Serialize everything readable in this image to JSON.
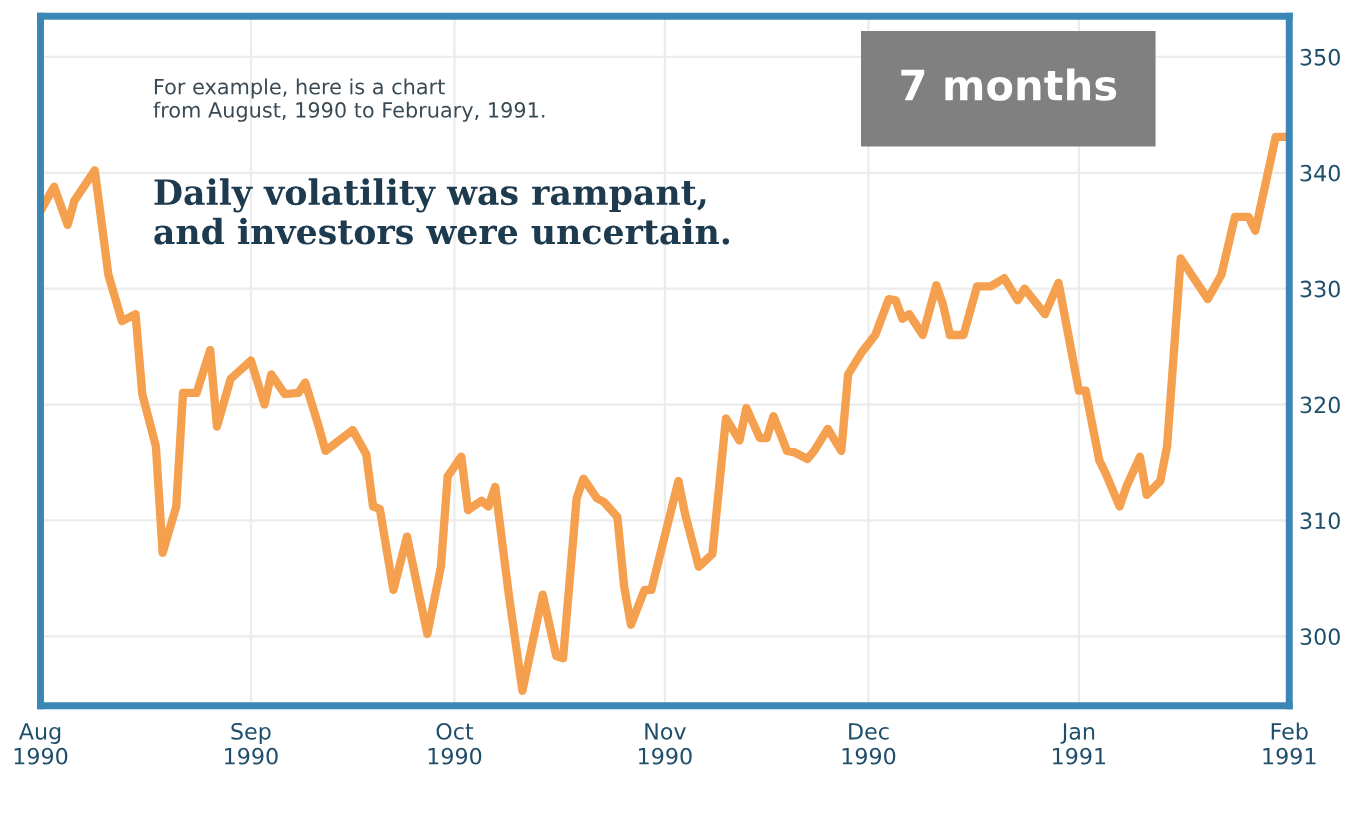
{
  "chart_data": {
    "type": "line",
    "annotations": [
      "For example, here is a chart\nfrom August, 1990 to February, 1991.",
      "Daily volatility was rampant,\nand investors were uncertain.",
      "7 months"
    ],
    "x": [
      "1990-08-01",
      "1990-08-03",
      "1990-08-05",
      "1990-08-06",
      "1990-08-09",
      "1990-08-11",
      "1990-08-13",
      "1990-08-15",
      "1990-08-16",
      "1990-08-18",
      "1990-08-19",
      "1990-08-21",
      "1990-08-22",
      "1990-08-24",
      "1990-08-26",
      "1990-08-27",
      "1990-08-29",
      "1990-09-01",
      "1990-09-03",
      "1990-09-04",
      "1990-09-06",
      "1990-09-08",
      "1990-09-09",
      "1990-09-11",
      "1990-09-12",
      "1990-09-16",
      "1990-09-18",
      "1990-09-19",
      "1990-09-20",
      "1990-09-22",
      "1990-09-24",
      "1990-09-27",
      "1990-09-29",
      "1990-09-30",
      "1990-10-02",
      "1990-10-03",
      "1990-10-05",
      "1990-10-06",
      "1990-10-07",
      "1990-10-09",
      "1990-10-11",
      "1990-10-14",
      "1990-10-16",
      "1990-10-17",
      "1990-10-19",
      "1990-10-20",
      "1990-10-22",
      "1990-10-23",
      "1990-10-25",
      "1990-10-26",
      "1990-10-27",
      "1990-10-29",
      "1990-10-30",
      "1990-11-03",
      "1990-11-04",
      "1990-11-06",
      "1990-11-08",
      "1990-11-10",
      "1990-11-12",
      "1990-11-13",
      "1990-11-15",
      "1990-11-16",
      "1990-11-17",
      "1990-11-19",
      "1990-11-20",
      "1990-11-22",
      "1990-11-23",
      "1990-11-25",
      "1990-11-27",
      "1990-11-28",
      "1990-11-30",
      "1990-12-02",
      "1990-12-04",
      "1990-12-05",
      "1990-12-06",
      "1990-12-07",
      "1990-12-09",
      "1990-12-11",
      "1990-12-12",
      "1990-12-13",
      "1990-12-15",
      "1990-12-17",
      "1990-12-19",
      "1990-12-21",
      "1990-12-23",
      "1990-12-24",
      "1990-12-27",
      "1990-12-29",
      "1991-01-01",
      "1991-01-02",
      "1991-01-04",
      "1991-01-05",
      "1991-01-07",
      "1991-01-08",
      "1991-01-10",
      "1991-01-11",
      "1991-01-13",
      "1991-01-14",
      "1991-01-16",
      "1991-01-20",
      "1991-01-22",
      "1991-01-24",
      "1991-01-26",
      "1991-01-27",
      "1991-01-30",
      "1991-01-31"
    ],
    "series": [
      {
        "color": "#f5a04f",
        "values": [
          336.7,
          338.8,
          335.5,
          337.6,
          340.2,
          331.2,
          327.2,
          327.8,
          320.9,
          316.4,
          307.2,
          311.2,
          321.0,
          321.0,
          324.7,
          318.1,
          322.2,
          323.8,
          320.0,
          322.6,
          320.9,
          321.0,
          321.9,
          318.1,
          316.0,
          317.8,
          315.7,
          311.2,
          311.0,
          304.0,
          308.6,
          300.2,
          306.0,
          313.8,
          315.5,
          310.9,
          311.7,
          311.2,
          312.9,
          303.6,
          295.3,
          303.6,
          298.3,
          298.1,
          311.9,
          313.6,
          311.9,
          311.6,
          310.3,
          304.3,
          301.0,
          304.0,
          304.0,
          313.4,
          310.5,
          306.0,
          307.1,
          318.8,
          316.9,
          319.7,
          317.1,
          317.1,
          319.0,
          316.0,
          315.9,
          315.3,
          316.0,
          317.9,
          316.0,
          322.6,
          324.5,
          326.0,
          329.1,
          329.0,
          327.4,
          327.8,
          326.0,
          330.3,
          328.6,
          326.0,
          326.0,
          330.2,
          330.2,
          330.9,
          329.0,
          330.0,
          327.8,
          330.5,
          321.2,
          321.2,
          315.2,
          314.0,
          311.2,
          312.9,
          315.5,
          312.2,
          313.4,
          316.4,
          332.6,
          329.1,
          331.2,
          336.2,
          336.2,
          335.0,
          343.1,
          343.1
        ]
      }
    ],
    "xlim": [
      "1990-08-01",
      "1991-02-01"
    ],
    "xticks": [
      {
        "value": "1990-08-01",
        "label": "Aug\n1990"
      },
      {
        "value": "1990-09-01",
        "label": "Sep\n1990"
      },
      {
        "value": "1990-10-01",
        "label": "Oct\n1990"
      },
      {
        "value": "1990-11-01",
        "label": "Nov\n1990"
      },
      {
        "value": "1990-12-01",
        "label": "Dec\n1990"
      },
      {
        "value": "1991-01-01",
        "label": "Jan\n1991"
      },
      {
        "value": "1991-02-01",
        "label": "Feb\n1991"
      }
    ],
    "ylim": [
      294,
      353.5
    ],
    "yticks": [
      300,
      310,
      320,
      330,
      340,
      350
    ],
    "grid": true,
    "line_style": "solid",
    "marker": "none"
  }
}
